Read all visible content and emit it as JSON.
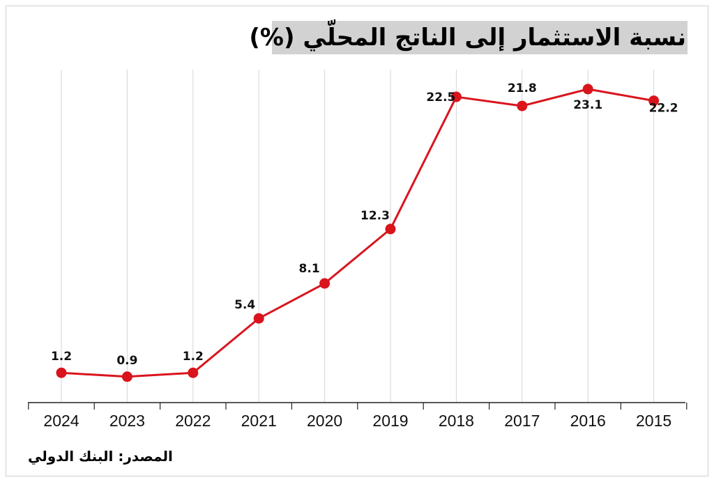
{
  "title": "نسبة الاستثمار إلى الناتج المحلّي (%)",
  "source": "المصدر: البنك الدولي",
  "colors": {
    "line": "#d9141d",
    "grid": "#d6d6d6",
    "axis": "#222222",
    "title_bg": "#d2d2d2"
  },
  "chart_data": {
    "type": "line",
    "x": [
      "2024",
      "2023",
      "2022",
      "2021",
      "2020",
      "2019",
      "2018",
      "2017",
      "2016",
      "2015"
    ],
    "series": [
      {
        "values": [
          1.2,
          0.9,
          1.2,
          5.4,
          8.1,
          12.3,
          22.5,
          21.8,
          23.1,
          22.2
        ],
        "labels": [
          "1.2",
          "0.9",
          "1.2",
          "5.4",
          "8.1",
          "12.3",
          "22.5",
          "21.8",
          "23.1",
          "22.2"
        ]
      }
    ],
    "ylim": [
      -1.1,
      24.6
    ],
    "grid": "vertical",
    "x_order": "right-to-left"
  }
}
